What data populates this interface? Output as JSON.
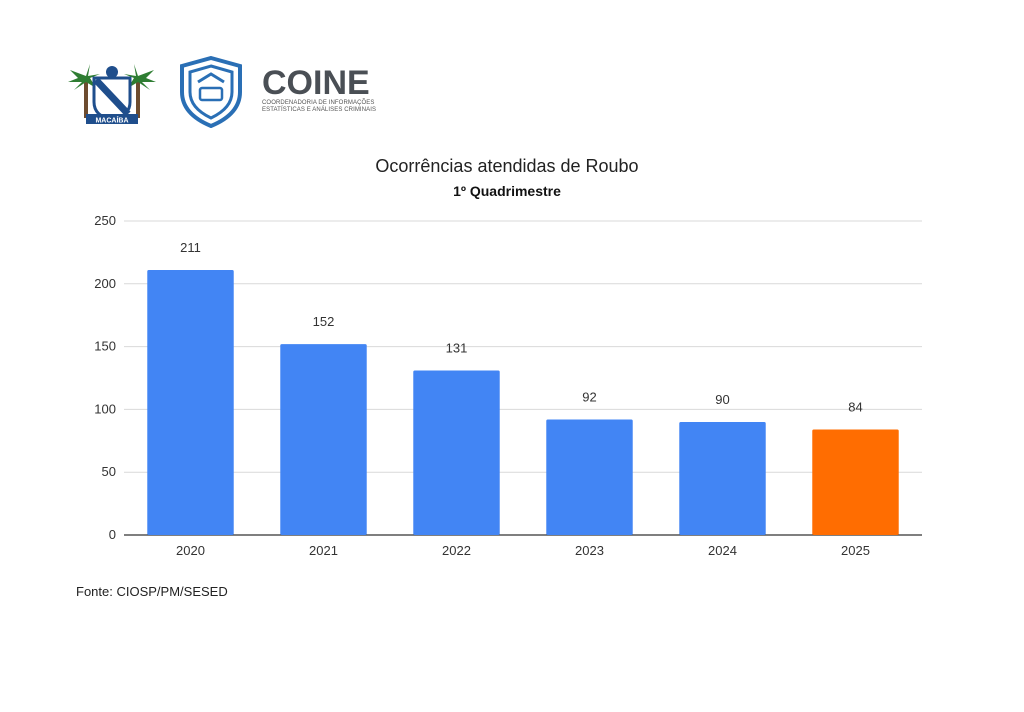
{
  "logos": {
    "macaiba": {
      "text": "MACAÍBA",
      "colors": [
        "#2e7d32",
        "#1f4e8c",
        "#ffffff"
      ]
    },
    "shield": {
      "icon": "shield-icon",
      "color": "#2a6fb5"
    },
    "coine": {
      "name": "COINE",
      "subtitle": "COORDENADORIA DE INFORMAÇÕES ESTATÍSTICAS E ANÁLISES CRIMINAIS",
      "colors": [
        "#4a4f55",
        "#e53935",
        "#43a047",
        "#1e88e5",
        "#fbc02d"
      ]
    }
  },
  "chart_data": {
    "type": "bar",
    "title": "Ocorrências atendidas de Roubo",
    "subtitle": "1º Quadrimestre",
    "categories": [
      "2020",
      "2021",
      "2022",
      "2023",
      "2024",
      "2025"
    ],
    "values": [
      211,
      152,
      131,
      92,
      90,
      84
    ],
    "colors": [
      "#4285f4",
      "#4285f4",
      "#4285f4",
      "#4285f4",
      "#4285f4",
      "#ff6d01"
    ],
    "ylim": [
      0,
      250
    ],
    "yticks": [
      0,
      50,
      100,
      150,
      200,
      250
    ],
    "grid": true,
    "legend": "none",
    "xlabel": "",
    "ylabel": ""
  },
  "source": "Fonte: CIOSP/PM/SESED"
}
